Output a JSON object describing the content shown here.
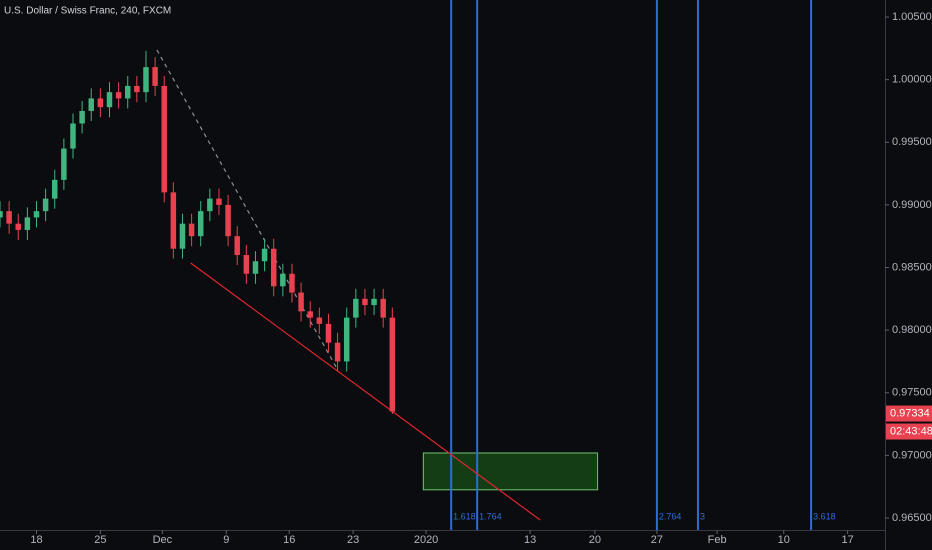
{
  "chart_data": {
    "type": "candlestick",
    "title": "U.S. Dollar / Swiss Franc, 240, FXCM",
    "x": [
      -4,
      -3,
      -2,
      -1,
      0,
      1,
      2,
      3,
      4,
      5,
      6,
      7,
      8,
      9,
      10,
      11,
      12,
      13,
      14,
      15,
      16,
      17,
      18,
      19,
      20,
      21,
      22,
      23,
      24,
      25,
      26,
      27,
      28,
      29,
      30,
      31,
      32,
      33,
      34,
      35,
      36,
      37,
      38,
      39
    ],
    "open": [
      0.989,
      0.9895,
      0.9885,
      0.988,
      0.989,
      0.9895,
      0.9905,
      0.992,
      0.9945,
      0.9965,
      0.9975,
      0.9985,
      0.9978,
      0.999,
      0.9985,
      0.9995,
      0.999,
      1.001,
      0.9995,
      0.991,
      0.9865,
      0.9885,
      0.9875,
      0.9895,
      0.9905,
      0.99,
      0.9875,
      0.986,
      0.9845,
      0.9855,
      0.9865,
      0.9835,
      0.9845,
      0.983,
      0.9815,
      0.981,
      0.9805,
      0.979,
      0.9775,
      0.981,
      0.9825,
      0.982,
      0.9825,
      0.981
    ],
    "high": [
      0.9903,
      0.9903,
      0.9893,
      0.9898,
      0.9903,
      0.9913,
      0.9928,
      0.9953,
      0.9973,
      0.9983,
      0.9993,
      0.9993,
      0.9998,
      0.9998,
      1.0003,
      1.0003,
      1.0023,
      1.0018,
      1.0003,
      0.9918,
      0.9893,
      0.9893,
      0.9903,
      0.9913,
      0.9913,
      0.9908,
      0.9883,
      0.9868,
      0.9863,
      0.9873,
      0.9873,
      0.9853,
      0.9853,
      0.9838,
      0.9823,
      0.9818,
      0.9813,
      0.9798,
      0.9818,
      0.9833,
      0.9833,
      0.9833,
      0.9833,
      0.9818
    ],
    "low": [
      0.9882,
      0.9877,
      0.9872,
      0.9872,
      0.9882,
      0.9887,
      0.9897,
      0.9912,
      0.9937,
      0.9957,
      0.9967,
      0.997,
      0.997,
      0.9977,
      0.9977,
      0.9982,
      0.9982,
      0.9987,
      0.9902,
      0.9857,
      0.9857,
      0.9867,
      0.9867,
      0.9887,
      0.9892,
      0.9867,
      0.9852,
      0.9837,
      0.9837,
      0.9847,
      0.9827,
      0.9827,
      0.9822,
      0.9807,
      0.9802,
      0.9797,
      0.9782,
      0.9767,
      0.9767,
      0.9802,
      0.9812,
      0.9812,
      0.9802,
      0.9733
    ],
    "close": [
      0.9895,
      0.9885,
      0.988,
      0.989,
      0.9895,
      0.9905,
      0.992,
      0.9945,
      0.9965,
      0.9975,
      0.9985,
      0.9978,
      0.999,
      0.9985,
      0.9995,
      0.999,
      1.001,
      0.9995,
      0.991,
      0.9865,
      0.9885,
      0.9875,
      0.9895,
      0.9905,
      0.99,
      0.9875,
      0.986,
      0.9845,
      0.9855,
      0.9865,
      0.9835,
      0.9845,
      0.983,
      0.9815,
      0.981,
      0.9805,
      0.979,
      0.9775,
      0.981,
      0.9825,
      0.982,
      0.9825,
      0.981,
      0.9735
    ],
    "up_color": "#3fb57f",
    "down_color": "#e8414f",
    "xlim": [
      -4,
      93
    ],
    "xticks": [
      {
        "value": 0,
        "label": "18"
      },
      {
        "value": 7,
        "label": "25"
      },
      {
        "value": 13.8,
        "label": "Dec"
      },
      {
        "value": 20.8,
        "label": "9"
      },
      {
        "value": 27.7,
        "label": "16"
      },
      {
        "value": 34.7,
        "label": "23"
      },
      {
        "value": 42.7,
        "label": "2020"
      },
      {
        "value": 54.1,
        "label": "13"
      },
      {
        "value": 61.2,
        "label": "20"
      },
      {
        "value": 68,
        "label": "27"
      },
      {
        "value": 74.6,
        "label": "Feb"
      },
      {
        "value": 81.9,
        "label": "10"
      },
      {
        "value": 88.9,
        "label": "17"
      }
    ],
    "ylim": [
      0.96404,
      1.00636
    ],
    "yticks": [
      {
        "value": 1.005,
        "label": "1.00500"
      },
      {
        "value": 1.0,
        "label": "1.00000"
      },
      {
        "value": 0.995,
        "label": "0.99500"
      },
      {
        "value": 0.99,
        "label": "0.99000"
      },
      {
        "value": 0.985,
        "label": "0.98500"
      },
      {
        "value": 0.98,
        "label": "0.98000"
      },
      {
        "value": 0.975,
        "label": "0.97500"
      },
      {
        "value": 0.97,
        "label": "0.97000"
      },
      {
        "value": 0.965,
        "label": "0.96500"
      }
    ],
    "last_price": 0.97334,
    "countdown": "02:43:48",
    "fib_lines": [
      {
        "level": 1.618,
        "x": 45.45
      },
      {
        "level": 1.764,
        "x": 48.3
      },
      {
        "level": 2.764,
        "x": 68.0
      },
      {
        "level": 3,
        "x": 72.5
      },
      {
        "level": 3.618,
        "x": 84.9
      }
    ],
    "fib_color": "#2a6fd6",
    "trend_line": {
      "x": [
        16.9,
        55.2
      ],
      "y": [
        0.98536,
        0.96484
      ],
      "color": "#e0262f"
    },
    "dashed_line": {
      "x": [
        13.2,
        32.9
      ],
      "y": [
        1.00237,
        0.97698
      ],
      "color": "#8a8f99"
    },
    "box": {
      "x": [
        42.4,
        61.5
      ],
      "y": [
        0.97019,
        0.96725
      ],
      "color": "#1f7a1f"
    }
  }
}
